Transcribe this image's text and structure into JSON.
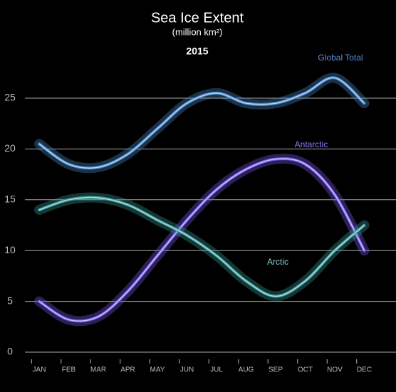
{
  "chart_data": {
    "type": "line",
    "title": "Sea Ice Extent",
    "subtitle": "(million km²)",
    "annotation": "2015",
    "categories": [
      "JAN",
      "FEB",
      "MAR",
      "APR",
      "MAY",
      "JUN",
      "JUL",
      "AUG",
      "SEP",
      "OCT",
      "NOV",
      "DEC"
    ],
    "series": [
      {
        "name": "Global Total",
        "color": "#4a8ccc",
        "values": [
          20.5,
          18.5,
          18.2,
          19.5,
          22,
          24.5,
          25.5,
          24.5,
          24.5,
          25.5,
          27,
          24.5
        ]
      },
      {
        "name": "Antarctic",
        "color": "#7b5cf0",
        "values": [
          5,
          3.2,
          3.5,
          6,
          9.5,
          13,
          16,
          18,
          19,
          18.5,
          15.5,
          10
        ]
      },
      {
        "name": "Arctic",
        "color": "#3a9e98",
        "values": [
          14,
          15,
          15.2,
          14.5,
          13,
          11.5,
          9.5,
          7,
          5.5,
          7,
          10,
          12.5
        ]
      }
    ],
    "ylim": [
      0,
      30
    ],
    "yticks": [
      0,
      5,
      10,
      15,
      20,
      25
    ],
    "grid": true
  }
}
